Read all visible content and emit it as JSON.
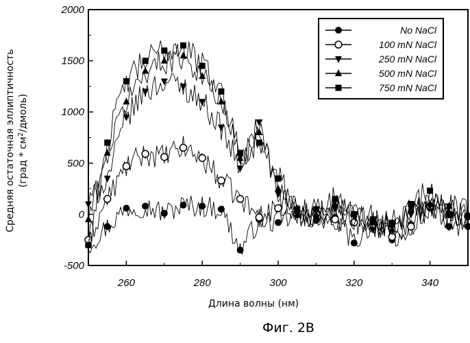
{
  "chart_data": {
    "type": "line",
    "title": "",
    "caption": "Фиг. 2B",
    "xlabel": "Длина волны (нм)",
    "ylabel_line1": "Средняя остаточная эллиптичность",
    "ylabel_line2_pre": "(град * см",
    "ylabel_line2_sup": "2",
    "ylabel_line2_post": "/дмоль)",
    "xlim": [
      250,
      350
    ],
    "ylim": [
      -500,
      2000
    ],
    "x_ticks": [
      260,
      280,
      300,
      320,
      340
    ],
    "x_tick_labels": [
      "260",
      "280",
      "300",
      "320",
      "340"
    ],
    "y_ticks": [
      -500,
      0,
      500,
      1000,
      1500,
      2000
    ],
    "y_tick_labels": [
      "-500",
      "0",
      "500",
      "1000",
      "1500",
      "2000"
    ],
    "legend_position": "top-right",
    "grid": false,
    "x": [
      250,
      255,
      260,
      265,
      270,
      275,
      280,
      285,
      290,
      295,
      300,
      305,
      310,
      315,
      320,
      325,
      330,
      335,
      340,
      345,
      350
    ],
    "series": [
      {
        "name": "No NaCl",
        "marker": "circle-filled",
        "values": [
          -300,
          -120,
          60,
          80,
          10,
          90,
          80,
          50,
          -350,
          -50,
          -80,
          0,
          -60,
          -30,
          -280,
          -80,
          -250,
          -100,
          60,
          -120,
          -120
        ]
      },
      {
        "name": "100 mN NaCl",
        "marker": "circle-open",
        "values": [
          -250,
          150,
          470,
          590,
          560,
          650,
          550,
          330,
          150,
          -30,
          60,
          0,
          0,
          -50,
          -80,
          -100,
          -220,
          -120,
          80,
          0,
          -20
        ]
      },
      {
        "name": "250 mN NaCl",
        "marker": "triangle-down",
        "values": [
          100,
          350,
          950,
          1200,
          1300,
          1250,
          1100,
          850,
          450,
          900,
          200,
          0,
          -40,
          60,
          -20,
          -150,
          -80,
          0,
          80,
          80,
          -20
        ]
      },
      {
        "name": "500 mN NaCl",
        "marker": "triangle-up",
        "values": [
          -50,
          600,
          1100,
          1400,
          1500,
          1550,
          1350,
          1100,
          550,
          800,
          250,
          0,
          0,
          100,
          0,
          -80,
          -150,
          50,
          100,
          80,
          0
        ]
      },
      {
        "name": "750 mN NaCl",
        "marker": "square",
        "values": [
          -300,
          700,
          1300,
          1500,
          1600,
          1650,
          1450,
          1200,
          600,
          700,
          350,
          50,
          50,
          150,
          0,
          -50,
          -100,
          100,
          230,
          0,
          -20
        ]
      }
    ]
  }
}
